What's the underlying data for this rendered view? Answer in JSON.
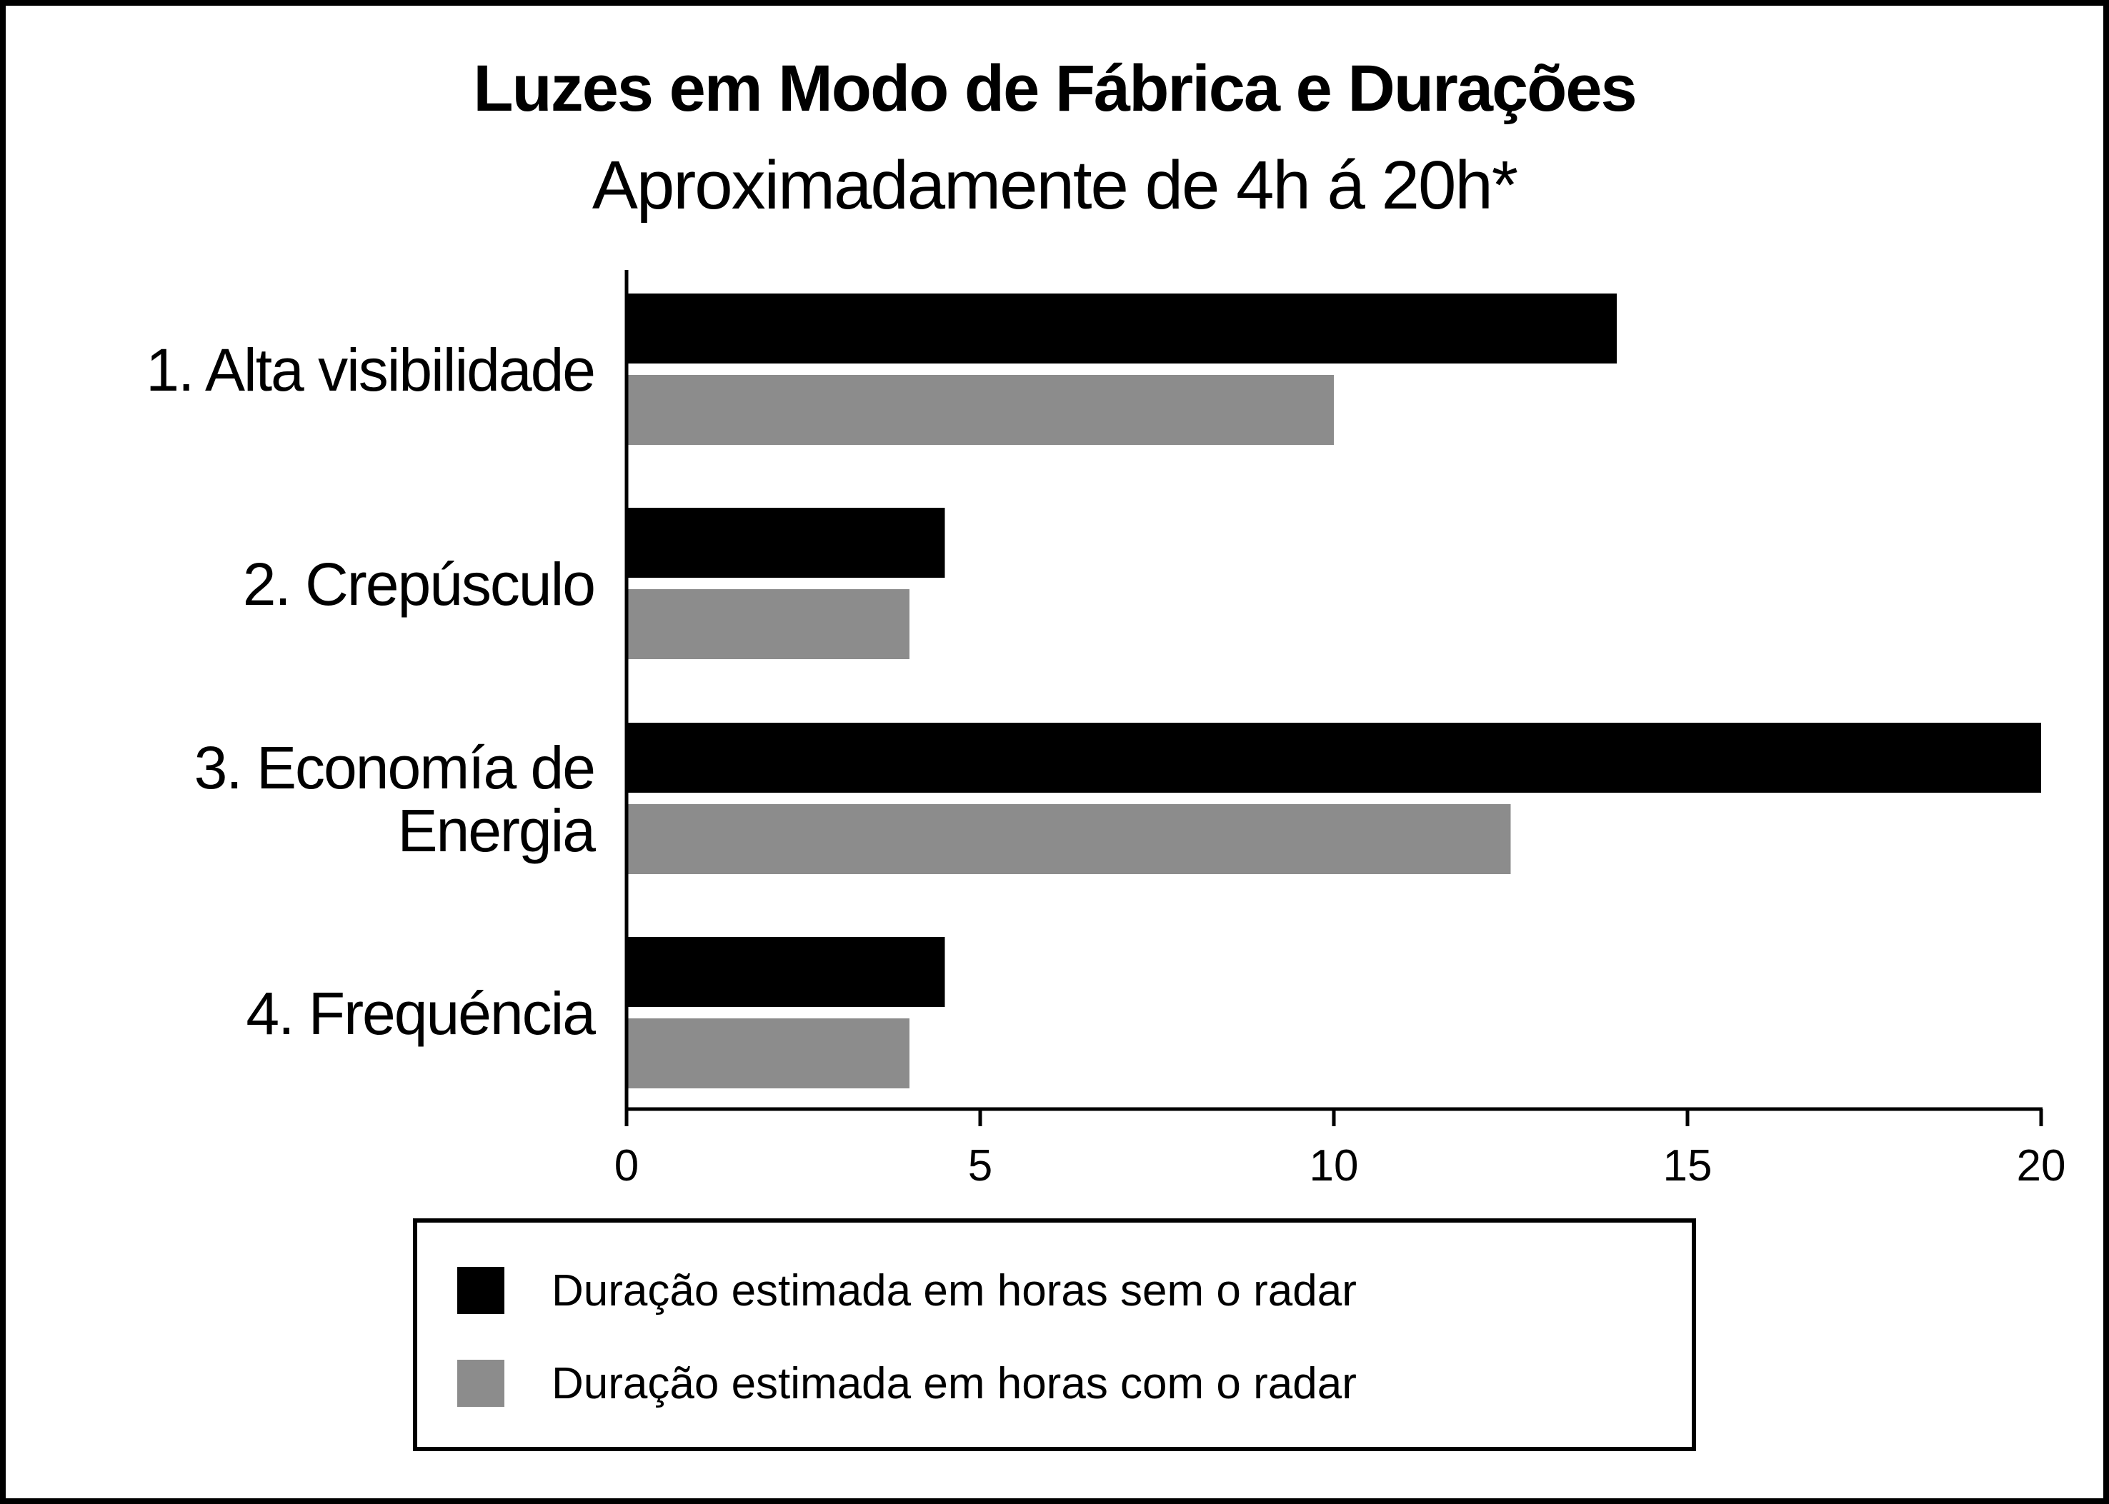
{
  "chart_data": {
    "type": "bar",
    "orientation": "horizontal",
    "title": "Luzes em Modo de Fábrica e Durações",
    "subtitle": "Aproximadamente de 4h á 20h*",
    "categories": [
      [
        "1. Alta visibilidade"
      ],
      [
        "2. Crepúsculo"
      ],
      [
        "3. Economía de",
        "Energia"
      ],
      [
        "4. Frequéncia"
      ]
    ],
    "series": [
      {
        "name": "Duração estimada em horas sem o radar",
        "color": "#000000",
        "values": [
          14,
          4.5,
          20,
          4.5
        ]
      },
      {
        "name": "Duração estimada em horas com o radar",
        "color": "#8c8c8c",
        "values": [
          10,
          4,
          12.5,
          4
        ]
      }
    ],
    "xlim": [
      0,
      20
    ],
    "xticks": [
      "0",
      "5",
      "10",
      "15",
      "20"
    ],
    "xtick_values": [
      0,
      5,
      10,
      15,
      20
    ],
    "grid": false,
    "legend_position": "bottom"
  }
}
